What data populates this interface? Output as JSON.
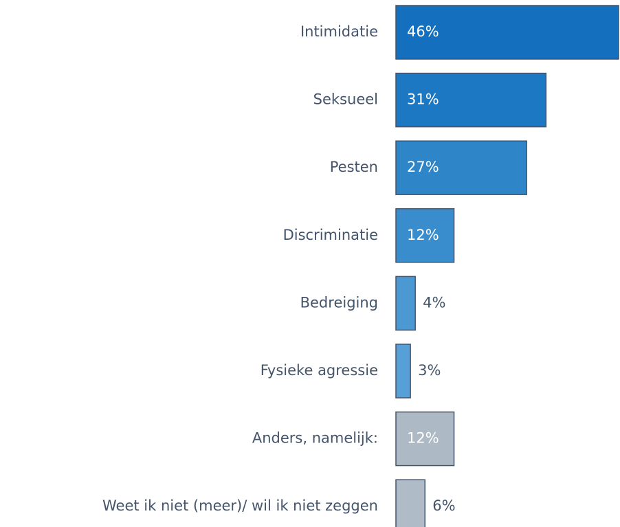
{
  "chart_data": {
    "type": "bar",
    "orientation": "horizontal",
    "categories": [
      "Intimidatie",
      "Seksueel",
      "Pesten",
      "Discriminatie",
      "Bedreiging",
      "Fysieke agressie",
      "Anders, namelijk:",
      "Weet ik niet (meer)/ wil ik niet zeggen"
    ],
    "values": [
      46,
      31,
      27,
      12,
      4,
      3,
      12,
      6
    ],
    "value_labels": [
      "46%",
      "31%",
      "27%",
      "12%",
      "4%",
      "3%",
      "12%",
      "6%"
    ],
    "colors": [
      "#1470be",
      "#1d78c3",
      "#2e85c8",
      "#3a8dcd",
      "#4b98d3",
      "#579fd7",
      "#adb9c4",
      "#afbbc6"
    ],
    "xlim": [
      0,
      46
    ]
  }
}
